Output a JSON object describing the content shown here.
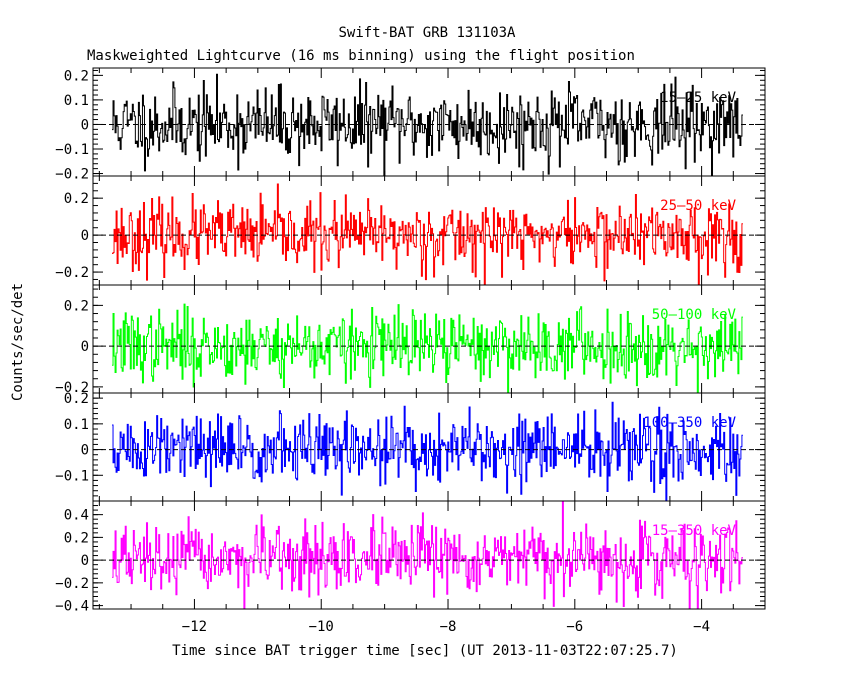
{
  "chart_data": {
    "type": "line",
    "title": "Swift-BAT GRB 131103A",
    "subtitle": "Maskweighted Lightcurve (16 ms binning) using the flight position",
    "xlabel": "Time since BAT trigger time [sec] (UT 2013-11-03T22:07:25.7)",
    "ylabel": "Counts/sec/det",
    "xlim": [
      -13.6,
      -3.0
    ],
    "xticks": [
      -12,
      -10,
      -8,
      -6,
      -4
    ],
    "xtick_labels": [
      "−12",
      "−10",
      "−8",
      "−6",
      "−4"
    ],
    "data_x_range": [
      -13.3,
      -3.35
    ],
    "bin_width_sec": 0.016,
    "grid": false,
    "panels": [
      {
        "name": "15–25 keV",
        "color": "#000000",
        "ylim": [
          -0.21,
          0.23
        ],
        "yticks": [
          -0.2,
          -0.1,
          0,
          0.1,
          0.2
        ],
        "ytick_labels": [
          "−0.2",
          "−0.1",
          "0",
          "0.1",
          "0.2"
        ],
        "noise_amplitude": 0.075,
        "seed": 11
      },
      {
        "name": "25–50 keV",
        "color": "#ff0000",
        "ylim": [
          -0.27,
          0.32
        ],
        "yticks": [
          -0.2,
          0,
          0.2
        ],
        "ytick_labels": [
          "−0.2",
          "0",
          "0.2"
        ],
        "noise_amplitude": 0.09,
        "seed": 23
      },
      {
        "name": "50–100 keV",
        "color": "#00ff00",
        "ylim": [
          -0.23,
          0.3
        ],
        "yticks": [
          -0.2,
          0,
          0.2
        ],
        "ytick_labels": [
          "−0.2",
          "0",
          "0.2"
        ],
        "noise_amplitude": 0.085,
        "seed": 37
      },
      {
        "name": "100–350 keV",
        "color": "#0000ff",
        "ylim": [
          -0.2,
          0.22
        ],
        "yticks": [
          -0.1,
          0,
          0.1,
          0.2
        ],
        "ytick_labels": [
          "−0.1",
          "0",
          "0.1",
          "0.2"
        ],
        "noise_amplitude": 0.07,
        "seed": 51
      },
      {
        "name": "15–350 keV",
        "color": "#ff00ff",
        "ylim": [
          -0.43,
          0.52
        ],
        "yticks": [
          -0.4,
          -0.2,
          0,
          0.2,
          0.4
        ],
        "ytick_labels": [
          "−0.4",
          "−0.2",
          "0",
          "0.2",
          "0.4"
        ],
        "noise_amplitude": 0.15,
        "seed": 67
      }
    ]
  }
}
